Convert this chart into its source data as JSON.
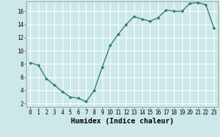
{
  "x": [
    0,
    1,
    2,
    3,
    4,
    5,
    6,
    7,
    8,
    9,
    10,
    11,
    12,
    13,
    14,
    15,
    16,
    17,
    18,
    19,
    20,
    21,
    22,
    23
  ],
  "y": [
    8.2,
    7.8,
    5.8,
    4.8,
    3.8,
    3.0,
    2.8,
    2.3,
    4.0,
    7.5,
    10.8,
    12.5,
    14.0,
    15.2,
    14.8,
    14.5,
    15.0,
    16.2,
    16.0,
    16.0,
    17.2,
    17.3,
    17.0,
    13.5
  ],
  "xlabel": "Humidex (Indice chaleur)",
  "xlim": [
    -0.5,
    23.5
  ],
  "ylim": [
    1.5,
    17.5
  ],
  "yticks": [
    2,
    4,
    6,
    8,
    10,
    12,
    14,
    16
  ],
  "xticks": [
    0,
    1,
    2,
    3,
    4,
    5,
    6,
    7,
    8,
    9,
    10,
    11,
    12,
    13,
    14,
    15,
    16,
    17,
    18,
    19,
    20,
    21,
    22,
    23
  ],
  "line_color": "#2d7d6e",
  "marker": "D",
  "marker_size": 2.0,
  "line_width": 1.0,
  "bg_color": "#cce8e8",
  "grid_color": "#ffffff",
  "tick_label_fontsize": 5.5,
  "xlabel_fontsize": 7.5
}
